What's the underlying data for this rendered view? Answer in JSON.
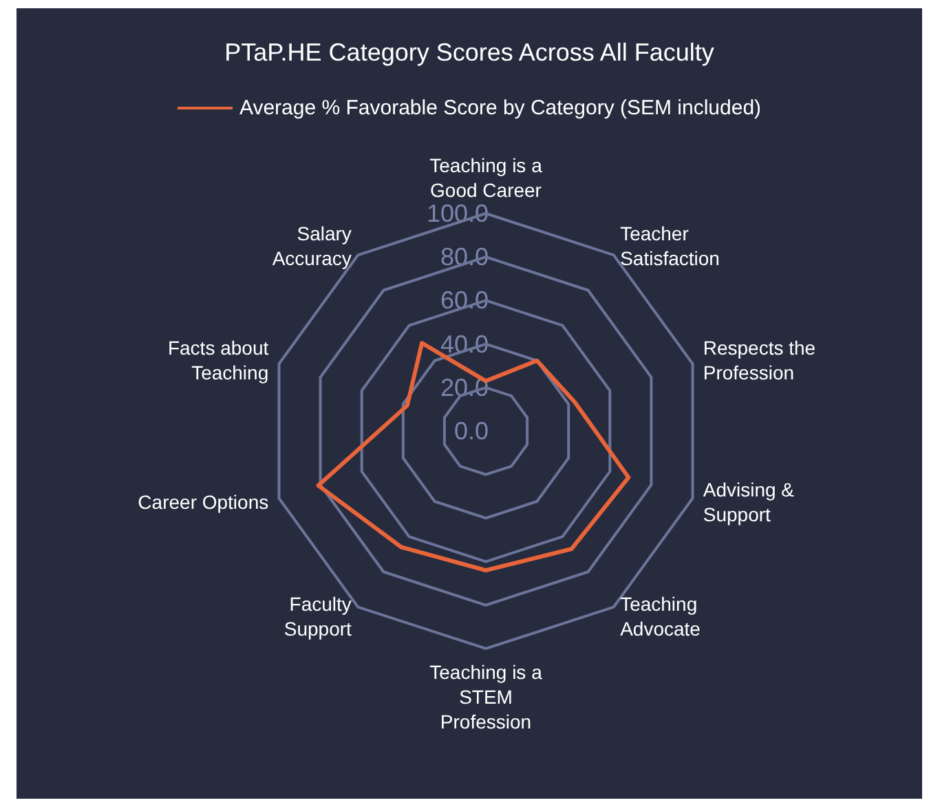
{
  "chart_data": {
    "type": "radar",
    "title": "PTaP.HE Category Scores Across All Faculty",
    "categories": [
      "Teaching is a Good Career",
      "Teacher Satisfaction",
      "Respects the Profession",
      "Advising & Support",
      "Teaching Advocate",
      "Teaching is a STEM Profession",
      "Faculty Support",
      "Career Options",
      "Facts about Teaching",
      "Salary Accuracy"
    ],
    "series": [
      {
        "name": "Average % Favorable Score by Category (SEM included)",
        "color": "#e8643a",
        "values": [
          23,
          40,
          43,
          69,
          67,
          64,
          66,
          81,
          38,
          50
        ]
      }
    ],
    "ylim": [
      0,
      100
    ],
    "yticks": [
      {
        "value": 0,
        "label": "0.0"
      },
      {
        "value": 20,
        "label": "20.0"
      },
      {
        "value": 40,
        "label": "40.0"
      },
      {
        "value": 60,
        "label": "60.0"
      },
      {
        "value": 80,
        "label": "80.0"
      },
      {
        "value": 100,
        "label": "100.0"
      }
    ],
    "legend": "top",
    "marker": "none",
    "line_style": "solid"
  }
}
